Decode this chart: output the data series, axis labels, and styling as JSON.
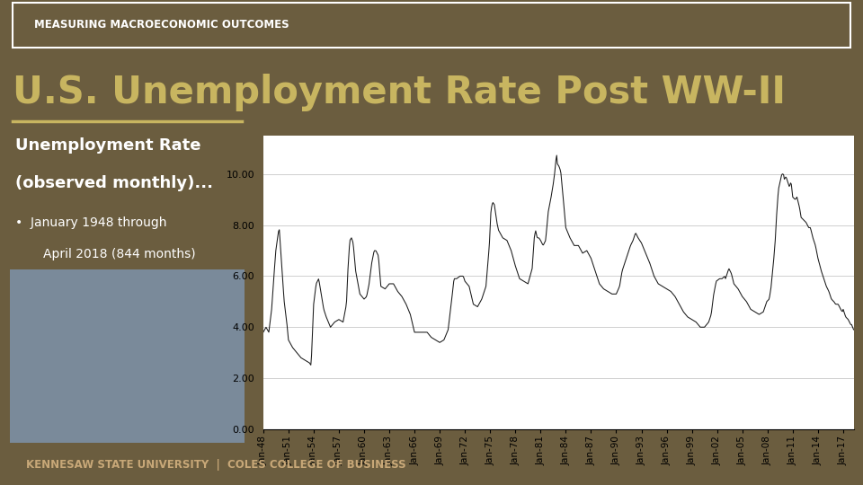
{
  "bg_color": "#6b5d3f",
  "header_bg": "#6b5d3f",
  "header_border": "#ffffff",
  "chart_bg": "#ffffff",
  "footer_bg": "#111008",
  "title_top": "MEASURING MACROECONOMIC OUTCOMES",
  "title_main": "U.S. Unemployment Rate Post WW-II",
  "subtitle_line1": "Unemployment Rate",
  "subtitle_line2": "(observed monthly)...",
  "bullet_line1": "January 1948 through",
  "bullet_line2": "April 2018 (844 months)",
  "footer": "KENNESAW STATE UNIVERSITY  |  COLES COLLEGE OF BUSINESS",
  "y_ticks": [
    0.0,
    2.0,
    4.0,
    6.0,
    8.0,
    10.0
  ],
  "x_tick_labels": [
    "Jan-48",
    "Jan-51",
    "Jan-54",
    "Jan-57",
    "Jan-60",
    "Jan-63",
    "Jan-66",
    "Jan-69",
    "Jan-72",
    "Jan-75",
    "Jan-78",
    "Jan-81",
    "Jan-84",
    "Jan-87",
    "Jan-90",
    "Jan-93",
    "Jan-96",
    "Jan-99",
    "Jan-02",
    "Jan-05",
    "Jan-08",
    "Jan-11",
    "Jan-14",
    "Jan-17"
  ],
  "line_color": "#1a1a1a",
  "grid_color": "#c8c8c8",
  "title_color": "#c8b560",
  "header_text_color": "#ffffff",
  "subtitle_color": "#ffffff",
  "footer_color": "#c8a878",
  "photo_color": "#7a8a9a",
  "underline_color": "#c8b560"
}
